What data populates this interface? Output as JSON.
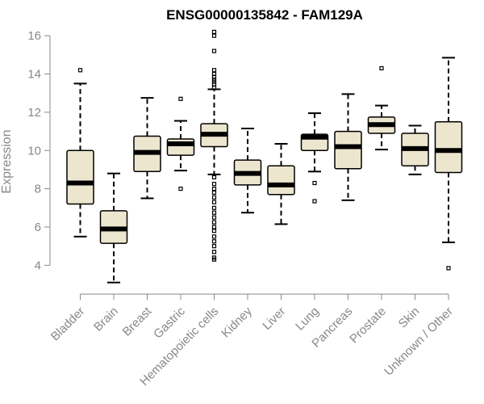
{
  "chart_data": {
    "type": "boxplot",
    "title": "ENSG00000135842 - FAM129A",
    "xlabel": "",
    "ylabel": "Expression",
    "ylim": [
      3.0,
      16.6
    ],
    "yticks": [
      "4",
      "6",
      "8",
      "10",
      "12",
      "14",
      "16"
    ],
    "categories": [
      "Bladder",
      "Brain",
      "Breast",
      "Gastric",
      "Hematopoietic cells",
      "Kidney",
      "Liver",
      "Lung",
      "Pancreas",
      "Prostate",
      "Skin",
      "Unknown / Other"
    ],
    "boxes": [
      {
        "name": "Bladder",
        "whisker_low": 5.5,
        "q1": 7.2,
        "median": 8.3,
        "q3": 10.0,
        "whisker_high": 13.5,
        "outliers": [
          14.2
        ]
      },
      {
        "name": "Brain",
        "whisker_low": 3.1,
        "q1": 5.15,
        "median": 5.9,
        "q3": 6.85,
        "whisker_high": 8.8,
        "outliers": []
      },
      {
        "name": "Breast",
        "whisker_low": 7.5,
        "q1": 8.9,
        "median": 9.9,
        "q3": 10.75,
        "whisker_high": 12.75,
        "outliers": []
      },
      {
        "name": "Gastric",
        "whisker_low": 8.95,
        "q1": 9.75,
        "median": 10.35,
        "q3": 10.6,
        "whisker_high": 11.55,
        "outliers": [
          12.7,
          8.0
        ]
      },
      {
        "name": "Hematopoietic cells",
        "whisker_low": 8.75,
        "q1": 10.2,
        "median": 10.85,
        "q3": 11.4,
        "whisker_high": 13.2,
        "outliers": [
          16.2,
          16.0,
          15.2,
          14.2,
          14.0,
          13.85,
          13.7,
          13.6,
          13.45,
          13.3,
          8.6,
          8.25,
          8.0,
          7.8,
          7.55,
          7.3,
          7.0,
          6.75,
          6.5,
          6.25,
          6.0,
          5.8,
          5.5,
          5.25,
          5.0,
          4.7,
          4.4,
          4.3
        ]
      },
      {
        "name": "Kidney",
        "whisker_low": 6.75,
        "q1": 8.2,
        "median": 8.8,
        "q3": 9.5,
        "whisker_high": 11.15,
        "outliers": []
      },
      {
        "name": "Liver",
        "whisker_low": 6.15,
        "q1": 7.7,
        "median": 8.2,
        "q3": 9.2,
        "whisker_high": 10.35,
        "outliers": []
      },
      {
        "name": "Lung",
        "whisker_low": 8.9,
        "q1": 10.0,
        "median": 10.7,
        "q3": 10.85,
        "whisker_high": 11.95,
        "outliers": [
          8.3,
          7.35
        ]
      },
      {
        "name": "Pancreas",
        "whisker_low": 7.4,
        "q1": 9.05,
        "median": 10.2,
        "q3": 11.0,
        "whisker_high": 12.95,
        "outliers": []
      },
      {
        "name": "Prostate",
        "whisker_low": 10.05,
        "q1": 10.9,
        "median": 11.35,
        "q3": 11.75,
        "whisker_high": 12.35,
        "outliers": [
          14.3
        ]
      },
      {
        "name": "Skin",
        "whisker_low": 8.75,
        "q1": 9.2,
        "median": 10.1,
        "q3": 10.9,
        "whisker_high": 11.3,
        "outliers": []
      },
      {
        "name": "Unknown / Other",
        "whisker_low": 5.2,
        "q1": 8.85,
        "median": 10.0,
        "q3": 11.5,
        "whisker_high": 14.85,
        "outliers": [
          3.85
        ]
      }
    ],
    "colors": {
      "box_fill": "#ede6cf",
      "box_stroke": "#000000",
      "axis": "#888888",
      "text": "#888888",
      "title": "#000000"
    }
  }
}
